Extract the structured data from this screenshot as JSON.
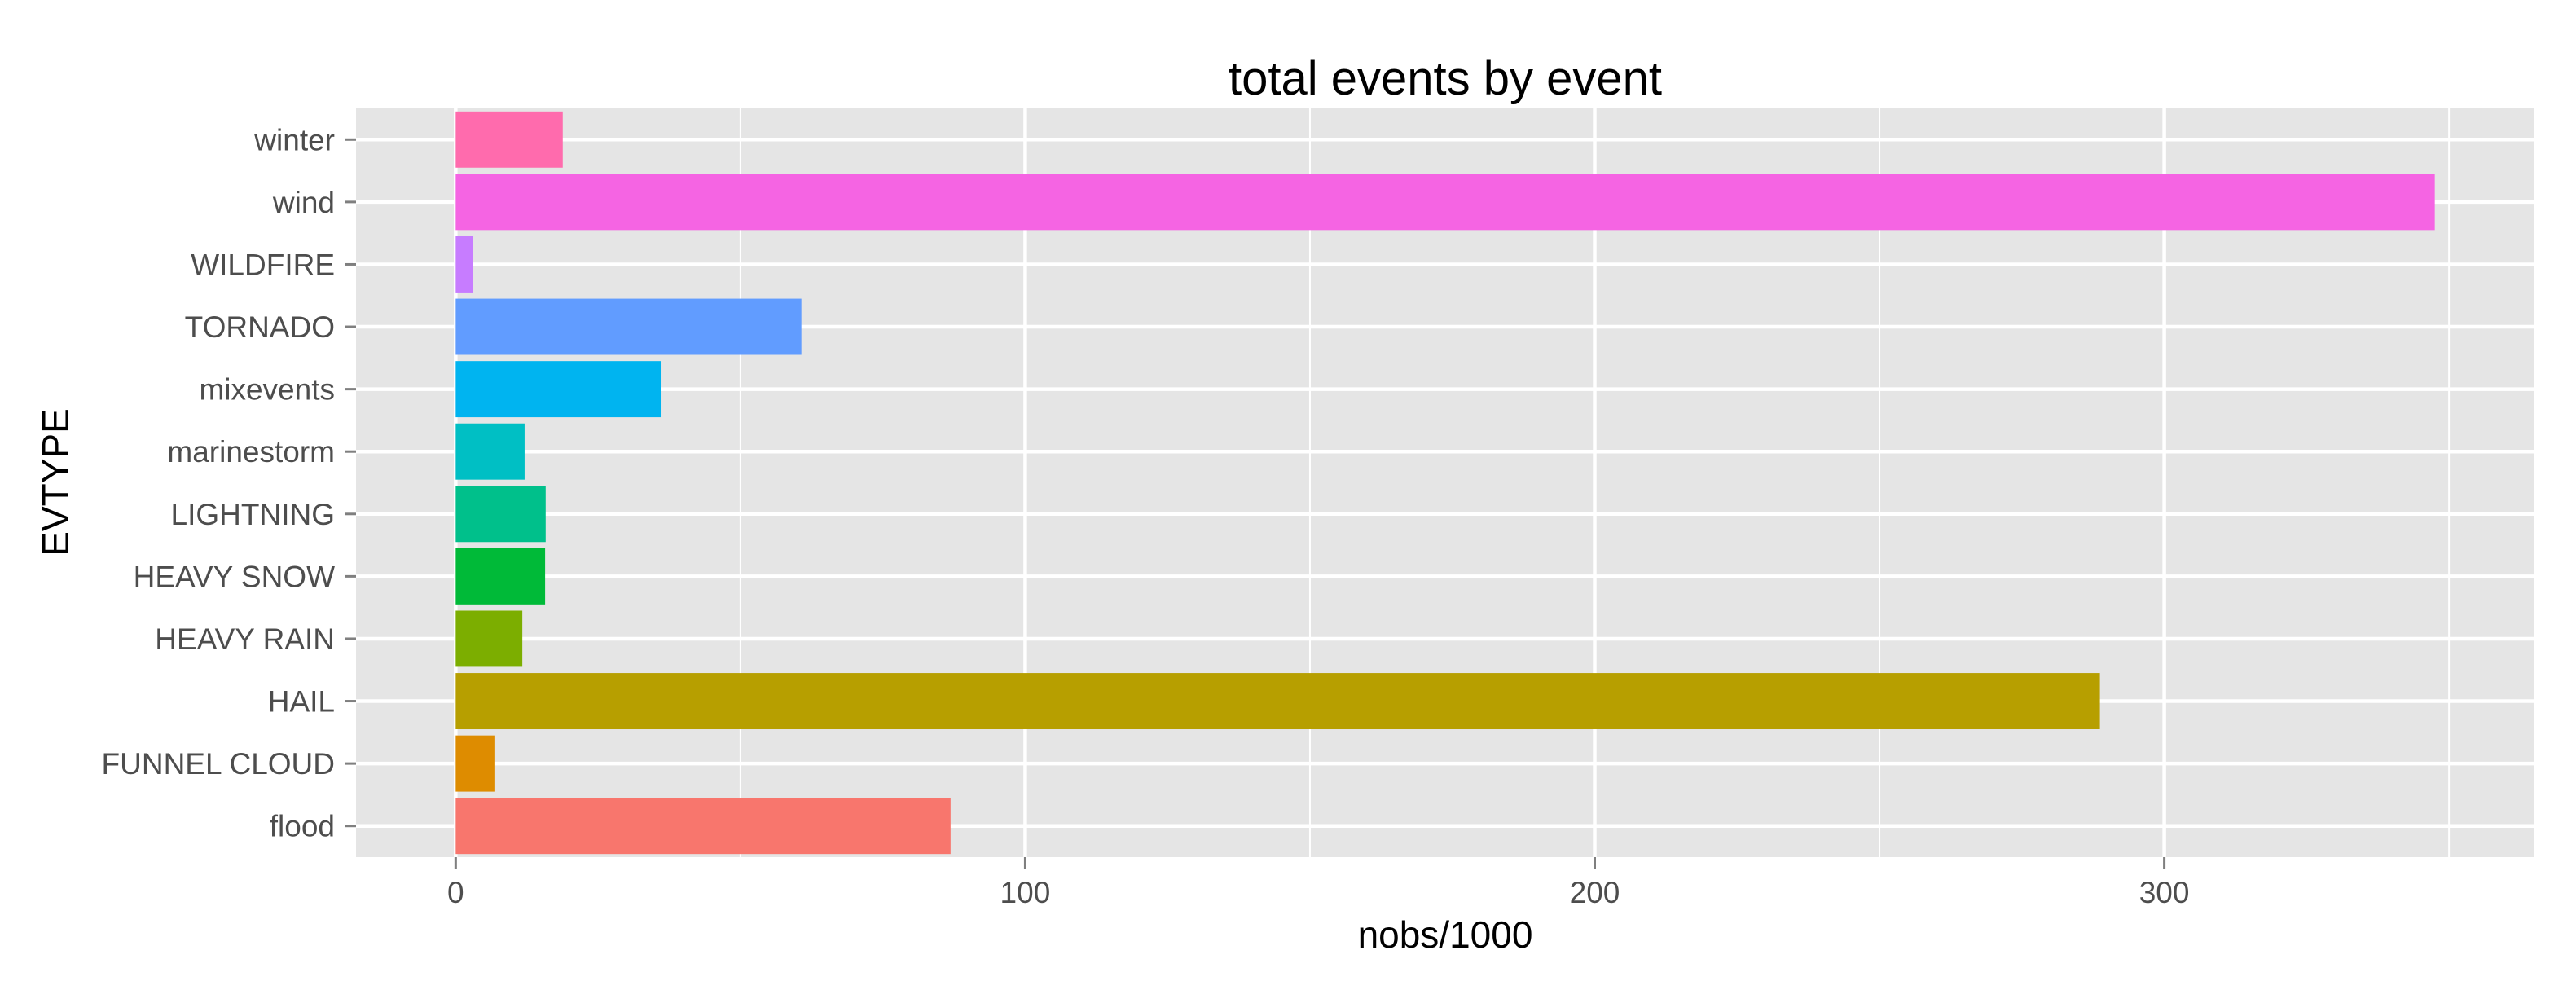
{
  "chart_data": {
    "type": "bar",
    "orientation": "horizontal",
    "title": "total events by event",
    "xlabel": "nobs/1000",
    "ylabel": "EVTYPE",
    "xlim": [
      -17.5,
      365
    ],
    "xticks": [
      0,
      100,
      200,
      300
    ],
    "xtick_labels": [
      "0",
      "100",
      "200",
      "300"
    ],
    "grid": true,
    "legend": "none",
    "panel_background": "#e5e5e5",
    "grid_color": "#ffffff",
    "tick_label_color": "#4d4d4d",
    "categories": [
      "winter",
      "wind",
      "WILDFIRE",
      "TORNADO",
      "mixevents",
      "marinestorm",
      "LIGHTNING",
      "HEAVY SNOW",
      "HEAVY RAIN",
      "HAIL",
      "FUNNEL CLOUD",
      "flood"
    ],
    "values": [
      18.8,
      347.5,
      3.0,
      60.7,
      36.0,
      12.1,
      15.8,
      15.7,
      11.7,
      288.7,
      6.8,
      86.9
    ],
    "colors": [
      "#FF6BAD",
      "#F564E3",
      "#C77CFF",
      "#619CFF",
      "#00B4F0",
      "#00BFC4",
      "#00C08B",
      "#00BA38",
      "#7CAE00",
      "#B79F00",
      "#DE8C00",
      "#F8766D"
    ]
  }
}
